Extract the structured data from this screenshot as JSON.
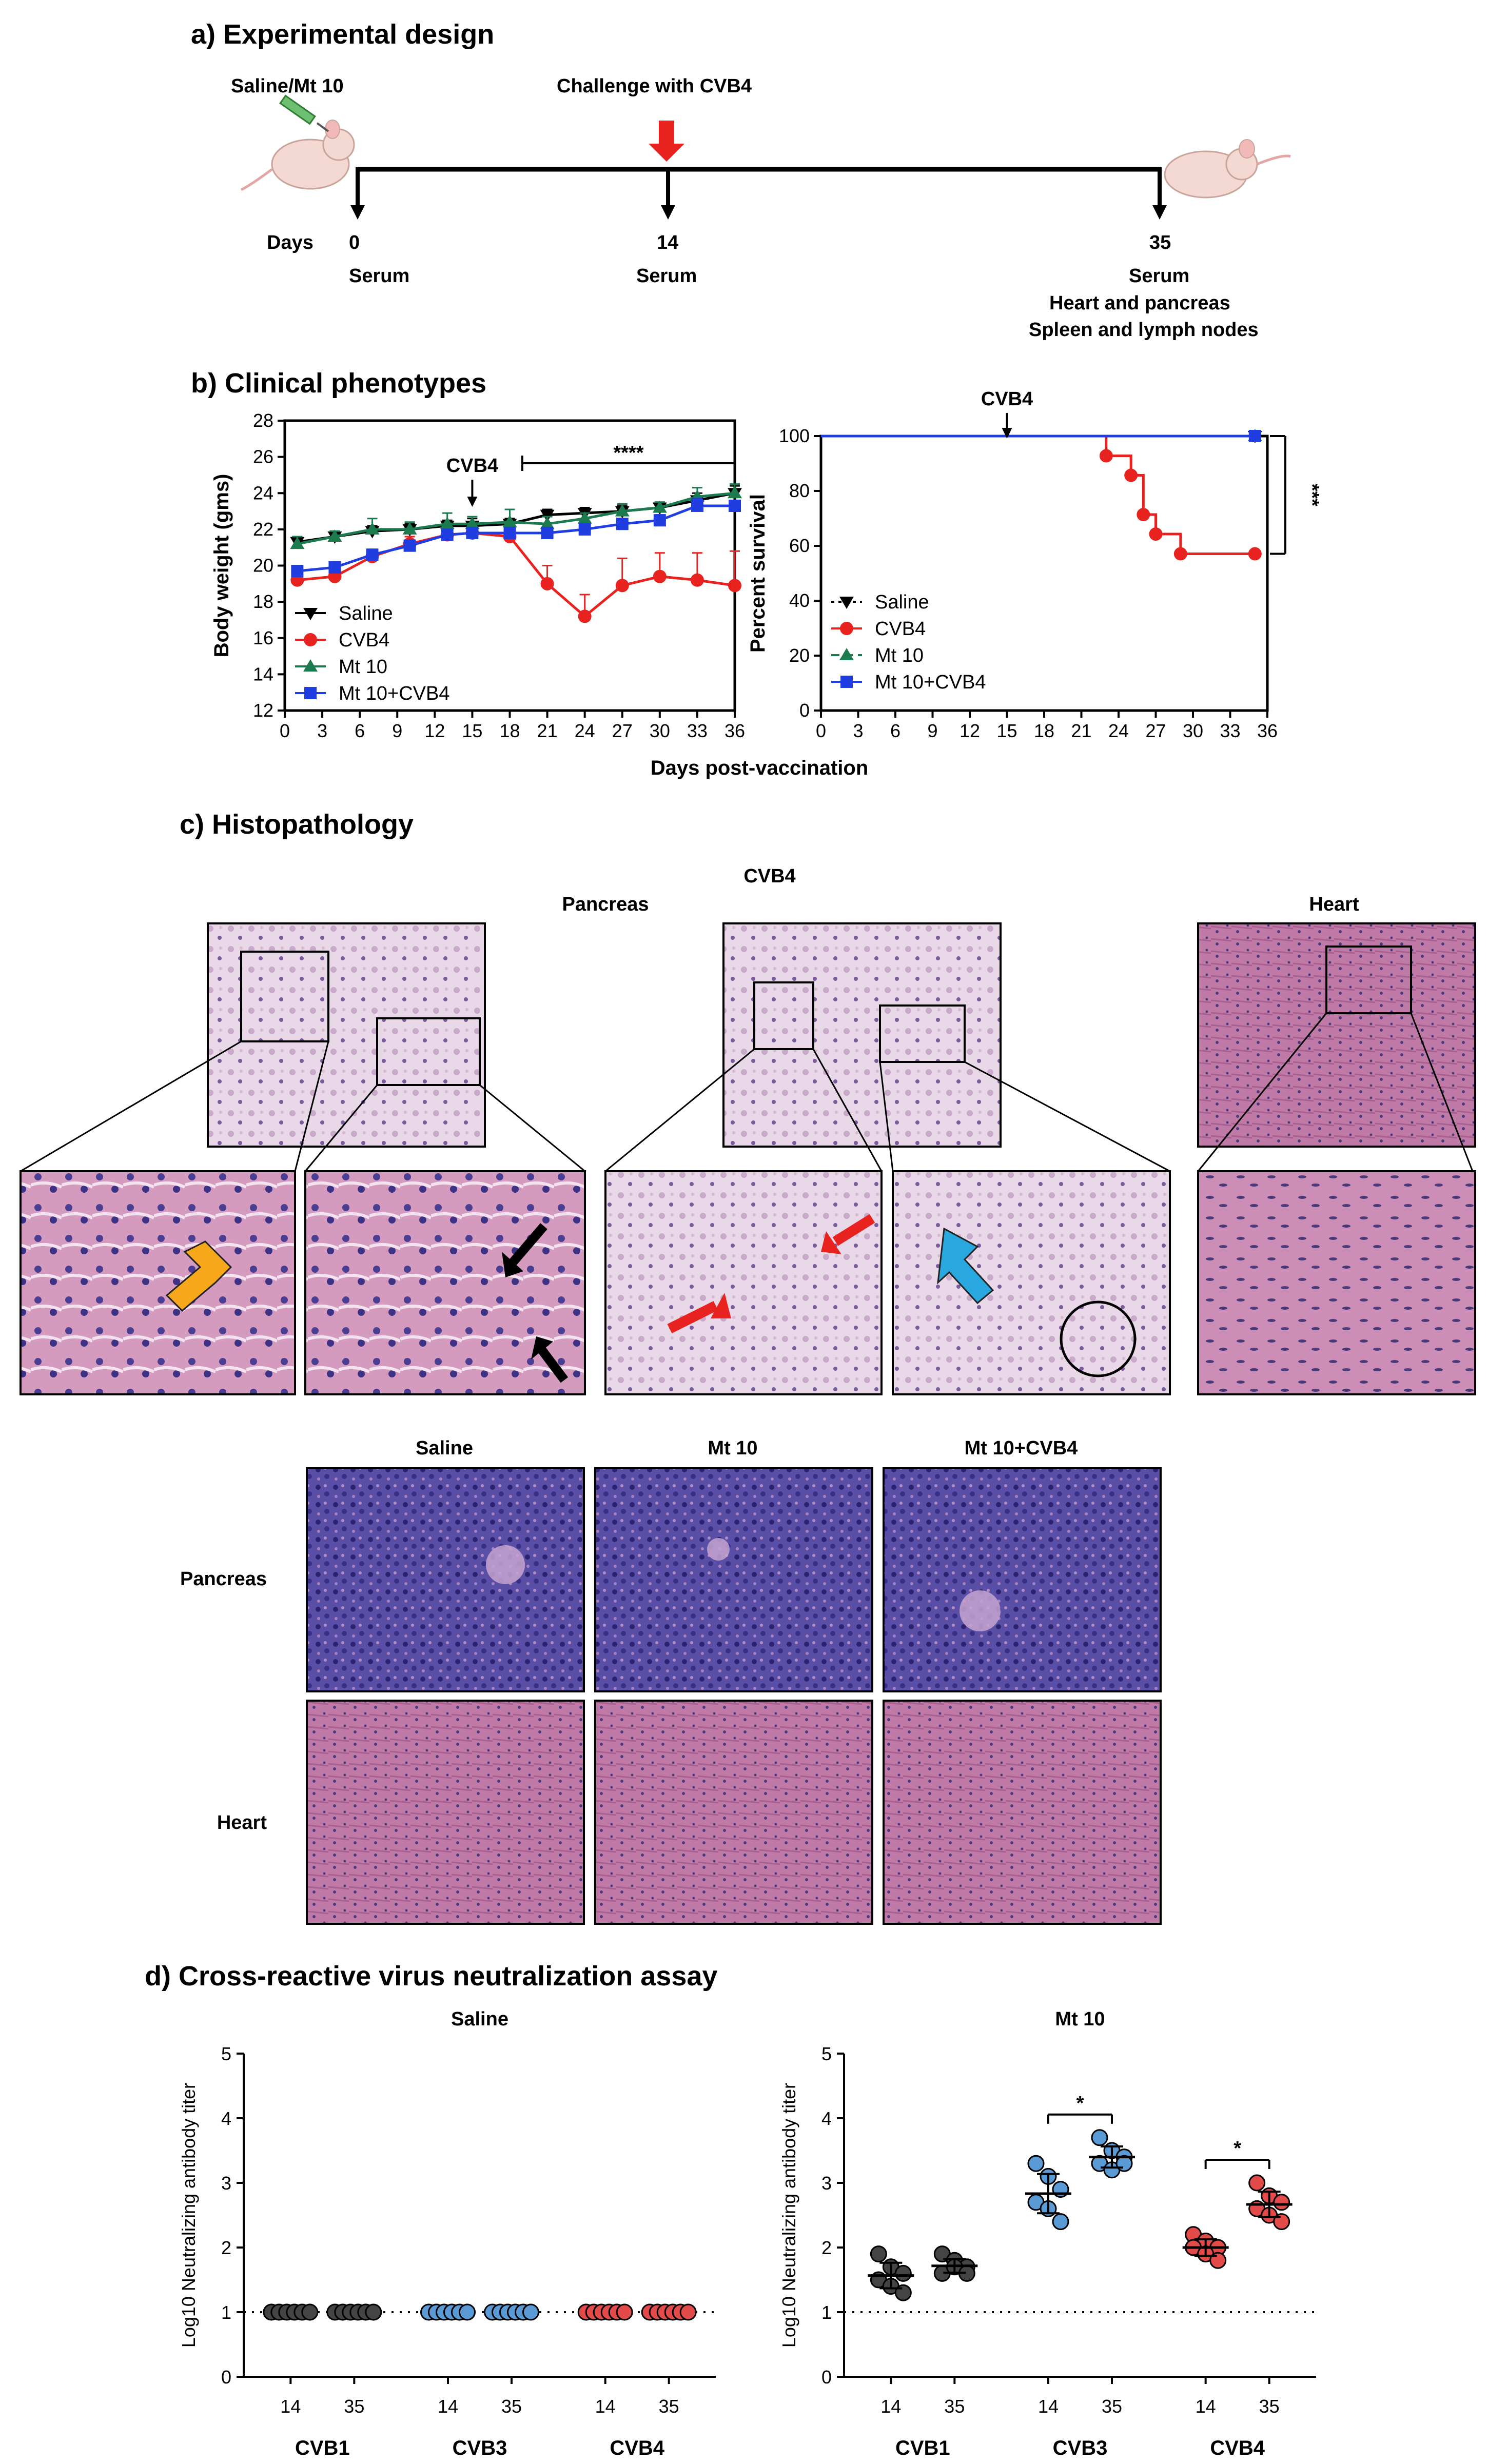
{
  "panels": {
    "a": "a) Experimental design",
    "b": "b) Clinical phenotypes",
    "c": "c) Histopathology",
    "d": "d) Cross-reactive virus neutralization assay"
  },
  "design": {
    "left_label": "Saline/Mt 10",
    "challenge": "Challenge with CVB4",
    "days_label": "Days",
    "d0": "0",
    "d14": "14",
    "d35": "35",
    "serum": "Serum",
    "d35_line2": "Heart and pancreas",
    "d35_line3": "Spleen and lymph nodes"
  },
  "histology": {
    "cvb4": "CVB4",
    "pancreas": "Pancreas",
    "heart": "Heart",
    "col_saline": "Saline",
    "col_mt10": "Mt 10",
    "col_mt10cvb4": "Mt 10+CVB4",
    "row_pancreas": "Pancreas",
    "row_heart": "Heart"
  },
  "colors": {
    "saline": "#000000",
    "cvb4": "#e8221f",
    "mt10": "#1b7a4e",
    "mt10cvb4": "#1f3de0",
    "cvb3_dots": "#5b9bd5",
    "cvb4_dots": "#e34a4a",
    "cvb1_dots": "#444444",
    "tissue_pancreas": "#4b3f93",
    "tissue_heart": "#b86a9e"
  },
  "chart_data": [
    {
      "type": "line",
      "ylabel": "Body weight (gms)",
      "xlabel": "Days post-vaccination",
      "annotation": "CVB4",
      "annotation_x": 15,
      "significance": "****",
      "sig_range": [
        19,
        36
      ],
      "xlim": [
        0,
        36
      ],
      "ylim": [
        12,
        28
      ],
      "xticks": [
        "0",
        "3",
        "6",
        "9",
        "12",
        "15",
        "18",
        "21",
        "24",
        "27",
        "30",
        "33",
        "36"
      ],
      "yticks": [
        "12",
        "14",
        "16",
        "18",
        "20",
        "22",
        "24",
        "26",
        "28"
      ],
      "x": [
        1,
        4,
        7,
        10,
        13,
        15,
        18,
        21,
        24,
        27,
        30,
        33,
        36
      ],
      "series": [
        {
          "name": "Saline",
          "values": [
            21.3,
            21.6,
            21.9,
            22.0,
            22.2,
            22.2,
            22.3,
            22.8,
            22.9,
            23.0,
            23.2,
            23.6,
            24.0
          ],
          "err": [
            0.3,
            0.3,
            0.3,
            0.3,
            0.3,
            0.4,
            0.3,
            0.3,
            0.3,
            0.3,
            0.3,
            0.4,
            0.4
          ]
        },
        {
          "name": "CVB4",
          "values": [
            19.2,
            19.4,
            20.5,
            21.2,
            21.7,
            21.8,
            21.6,
            19.0,
            17.2,
            18.9,
            19.4,
            19.2,
            18.9
          ],
          "err": [
            0.3,
            0.3,
            0.3,
            0.4,
            0.4,
            0.4,
            0.4,
            1.0,
            1.2,
            1.5,
            1.3,
            1.5,
            1.9
          ]
        },
        {
          "name": "Mt 10",
          "values": [
            21.2,
            21.6,
            22.0,
            22.0,
            22.3,
            22.3,
            22.4,
            22.3,
            22.6,
            23.0,
            23.2,
            23.8,
            24.0
          ],
          "err": [
            0.4,
            0.3,
            0.6,
            0.4,
            0.6,
            0.4,
            0.7,
            0.4,
            0.3,
            0.4,
            0.3,
            0.5,
            0.5
          ]
        },
        {
          "name": "Mt 10+CVB4",
          "values": [
            19.7,
            19.9,
            20.6,
            21.1,
            21.7,
            21.8,
            21.8,
            21.8,
            22.0,
            22.3,
            22.5,
            23.3,
            23.3
          ],
          "err": [
            0.3,
            0.3,
            0.3,
            0.3,
            0.3,
            0.3,
            0.3,
            0.3,
            0.3,
            0.3,
            0.3,
            0.4,
            0.3
          ]
        }
      ]
    },
    {
      "type": "line",
      "ylabel": "Percent survival",
      "xlabel": "Days post-vaccination",
      "annotation": "CVB4",
      "annotation_x": 15,
      "significance": "***",
      "xlim": [
        0,
        36
      ],
      "ylim": [
        0,
        100
      ],
      "xticks": [
        "0",
        "3",
        "6",
        "9",
        "12",
        "15",
        "18",
        "21",
        "24",
        "27",
        "30",
        "33",
        "36"
      ],
      "yticks": [
        "0",
        "20",
        "40",
        "60",
        "80",
        "100"
      ],
      "series": [
        {
          "name": "Saline",
          "steps": [
            [
              0,
              100
            ],
            [
              35,
              100
            ]
          ]
        },
        {
          "name": "CVB4",
          "steps": [
            [
              0,
              100
            ],
            [
              23,
              100
            ],
            [
              23,
              92.8
            ],
            [
              25,
              92.8
            ],
            [
              25,
              85.7
            ],
            [
              26,
              85.7
            ],
            [
              26,
              71.4
            ],
            [
              27,
              71.4
            ],
            [
              27,
              64.3
            ],
            [
              29,
              64.3
            ],
            [
              29,
              57.1
            ],
            [
              35,
              57.1
            ]
          ],
          "markers": [
            [
              23,
              92.8
            ],
            [
              25,
              85.7
            ],
            [
              26,
              71.4
            ],
            [
              27,
              64.3
            ],
            [
              29,
              57.1
            ],
            [
              35,
              57.1
            ]
          ]
        },
        {
          "name": "Mt 10",
          "steps": [
            [
              0,
              100
            ],
            [
              35,
              100
            ]
          ]
        },
        {
          "name": "Mt 10+CVB4",
          "steps": [
            [
              0,
              100
            ],
            [
              35,
              100
            ]
          ]
        }
      ]
    },
    {
      "type": "scatter",
      "title": "Saline",
      "ylabel": "Log10 Neutralizing antibody titer",
      "ylim": [
        0,
        5
      ],
      "yticks": [
        "0",
        "1",
        "2",
        "3",
        "4",
        "5"
      ],
      "groups": [
        "CVB1",
        "CVB3",
        "CVB4"
      ],
      "timepoints": [
        "14",
        "35"
      ],
      "values": [
        [
          [
            1,
            1,
            1,
            1,
            1,
            1
          ],
          [
            1,
            1,
            1,
            1,
            1,
            1
          ]
        ],
        [
          [
            1,
            1,
            1,
            1,
            1,
            1
          ],
          [
            1,
            1,
            1,
            1,
            1,
            1
          ]
        ],
        [
          [
            1,
            1,
            1,
            1,
            1,
            1
          ],
          [
            1,
            1,
            1,
            1,
            1,
            1
          ]
        ]
      ],
      "baseline": 1
    },
    {
      "type": "scatter",
      "title": "Mt 10",
      "ylabel": "Log10 Neutralizing antibody titer",
      "ylim": [
        0,
        5
      ],
      "yticks": [
        "0",
        "1",
        "2",
        "3",
        "4",
        "5"
      ],
      "groups": [
        "CVB1",
        "CVB3",
        "CVB4"
      ],
      "timepoints": [
        "14",
        "35"
      ],
      "values": [
        [
          [
            1.9,
            1.7,
            1.6,
            1.5,
            1.4,
            1.3
          ],
          [
            1.9,
            1.8,
            1.7,
            1.6,
            1.7,
            1.6
          ]
        ],
        [
          [
            3.3,
            3.1,
            2.9,
            2.7,
            2.6,
            2.4
          ],
          [
            3.7,
            3.5,
            3.4,
            3.3,
            3.2,
            3.3
          ]
        ],
        [
          [
            2.2,
            2.1,
            2.0,
            2.0,
            1.9,
            1.8
          ],
          [
            3.0,
            2.8,
            2.7,
            2.6,
            2.5,
            2.4
          ]
        ]
      ],
      "significance": [
        "",
        "*",
        "*"
      ],
      "baseline": 1
    }
  ]
}
